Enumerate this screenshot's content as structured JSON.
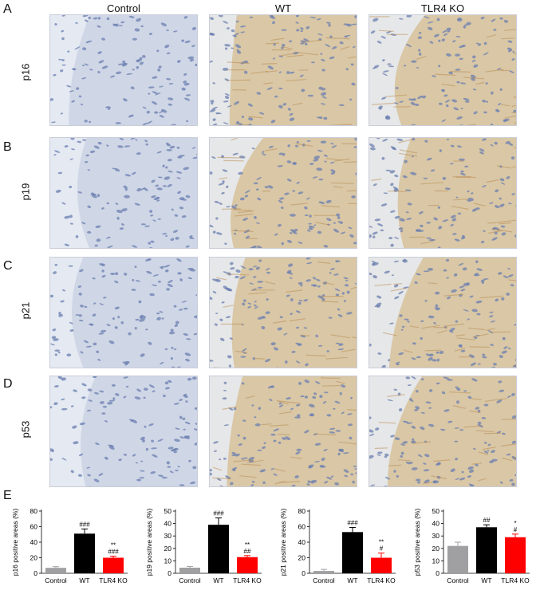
{
  "figure": {
    "columns": [
      "Control",
      "WT",
      "TLR4 KO"
    ],
    "rows": [
      {
        "letter": "A",
        "label": "p16"
      },
      {
        "letter": "B",
        "label": "p19"
      },
      {
        "letter": "C",
        "label": "p21"
      },
      {
        "letter": "D",
        "label": "p53"
      }
    ],
    "chart_panel_letter": "E"
  },
  "colors": {
    "Control": "#a0a0a3",
    "WT": "#000000",
    "TLR4 KO": "#ff0000",
    "tissue_control": "#cfd6e6",
    "tissue_stained": "#d9c7a6",
    "nuclei": "#6b7fb0"
  },
  "chart_data": [
    {
      "type": "bar",
      "categories": [
        "Control",
        "WT",
        "TLR4 KO"
      ],
      "values": [
        7,
        51,
        20
      ],
      "errors": [
        1.5,
        6,
        2
      ],
      "annotations": [
        "",
        "###",
        "**\n###"
      ],
      "ylabel": "p16 positive areas (%)",
      "ylim": [
        0,
        80
      ],
      "yticks": [
        0,
        20,
        40,
        60,
        80
      ]
    },
    {
      "type": "bar",
      "categories": [
        "Control",
        "WT",
        "TLR4 KO"
      ],
      "values": [
        4.5,
        39,
        13
      ],
      "errors": [
        1,
        5.5,
        1.2
      ],
      "annotations": [
        "",
        "###",
        "**\n##"
      ],
      "ylabel": "p19 positive areas (%)",
      "ylim": [
        0,
        50
      ],
      "yticks": [
        0,
        10,
        20,
        30,
        40,
        50
      ]
    },
    {
      "type": "bar",
      "categories": [
        "Control",
        "WT",
        "TLR4 KO"
      ],
      "values": [
        3,
        53,
        20
      ],
      "errors": [
        2,
        6,
        6
      ],
      "annotations": [
        "",
        "###",
        "**\n#"
      ],
      "ylabel": "p21 positive areas (%)",
      "ylim": [
        0,
        80
      ],
      "yticks": [
        0,
        20,
        40,
        60,
        80
      ]
    },
    {
      "type": "bar",
      "categories": [
        "Control",
        "WT",
        "TLR4 KO"
      ],
      "values": [
        22,
        37,
        29
      ],
      "errors": [
        3,
        2,
        2.5
      ],
      "annotations": [
        "",
        "##",
        "*\n#"
      ],
      "ylabel": "p53 positive areas (%)",
      "ylim": [
        0,
        50
      ],
      "yticks": [
        0,
        10,
        20,
        30,
        40,
        50
      ]
    }
  ]
}
